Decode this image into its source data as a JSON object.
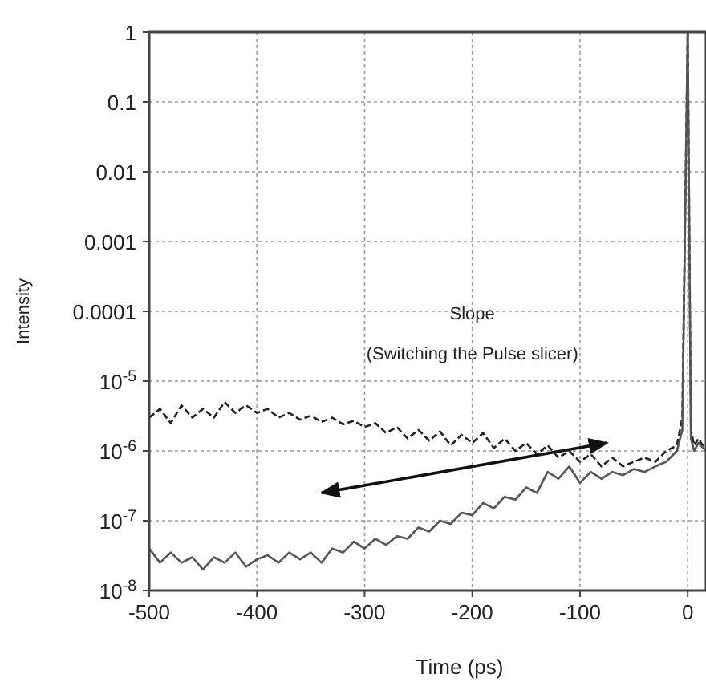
{
  "chart_data": {
    "type": "line",
    "xlabel": "Time (ps)",
    "ylabel": "Intensity",
    "log": "y",
    "grid": true,
    "marker": "none",
    "xlim": [
      -500,
      17
    ],
    "ylim": [
      1e-08,
      1
    ],
    "xticks": [
      -500,
      -400,
      -300,
      -200,
      -100,
      0
    ],
    "yticks": [
      {
        "value": 1e-08,
        "label": "10$^{-8}$"
      },
      {
        "value": 1e-07,
        "label": "10$^{-7}$"
      },
      {
        "value": 1e-06,
        "label": "10$^{-6}$"
      },
      {
        "value": 1e-05,
        "label": "10$^{-5}$"
      },
      0.0001,
      0.001,
      0.01,
      0.1,
      1
    ],
    "annotations": [
      "Slope",
      "(Switching the Pulse slicer)"
    ],
    "series": [
      {
        "color": "#222222",
        "line_style": "dashed",
        "x": [
          -500,
          -490,
          -480,
          -470,
          -460,
          -450,
          -440,
          -430,
          -420,
          -410,
          -400,
          -390,
          -380,
          -370,
          -360,
          -350,
          -340,
          -330,
          -320,
          -310,
          -300,
          -290,
          -280,
          -270,
          -260,
          -250,
          -240,
          -230,
          -220,
          -210,
          -200,
          -190,
          -180,
          -170,
          -160,
          -150,
          -140,
          -130,
          -120,
          -110,
          -100,
          -90,
          -80,
          -70,
          -60,
          -50,
          -40,
          -30,
          -20,
          -10,
          -5,
          0,
          3,
          6,
          10,
          17
        ],
        "values": [
          3e-06,
          4e-06,
          2.5e-06,
          4.5e-06,
          3e-06,
          4e-06,
          3e-06,
          5e-06,
          3.5e-06,
          4.5e-06,
          3.5e-06,
          4e-06,
          3e-06,
          3.5e-06,
          2.8e-06,
          3.2e-06,
          2.6e-06,
          3e-06,
          2.4e-06,
          2.7e-06,
          2.2e-06,
          2.5e-06,
          1.8e-06,
          2.2e-06,
          1.5e-06,
          2e-06,
          1.4e-06,
          1.9e-06,
          1.2e-06,
          1.7e-06,
          1.3e-06,
          1.8e-06,
          1.1e-06,
          1.5e-06,
          1e-06,
          1.3e-06,
          9e-07,
          1.2e-06,
          8e-07,
          1e-06,
          7e-07,
          9e-07,
          6e-07,
          8e-07,
          6e-07,
          7e-07,
          8e-07,
          7e-07,
          1e-06,
          1.2e-06,
          3e-06,
          1,
          2e-06,
          1.2e-06,
          1.5e-06,
          1e-06
        ]
      },
      {
        "color": "#555555",
        "line_style": "solid",
        "x": [
          -500,
          -490,
          -480,
          -470,
          -460,
          -450,
          -440,
          -430,
          -420,
          -410,
          -400,
          -390,
          -380,
          -370,
          -360,
          -350,
          -340,
          -330,
          -320,
          -310,
          -300,
          -290,
          -280,
          -270,
          -260,
          -250,
          -240,
          -230,
          -220,
          -210,
          -200,
          -190,
          -180,
          -170,
          -160,
          -150,
          -140,
          -130,
          -120,
          -110,
          -100,
          -90,
          -80,
          -70,
          -60,
          -50,
          -40,
          -30,
          -20,
          -10,
          -5,
          0,
          3,
          6,
          10,
          17
        ],
        "values": [
          4e-08,
          2.5e-08,
          3.5e-08,
          2.5e-08,
          3e-08,
          2e-08,
          3e-08,
          2.5e-08,
          3.5e-08,
          2.2e-08,
          2.8e-08,
          3.2e-08,
          2.5e-08,
          3.5e-08,
          2.8e-08,
          3.5e-08,
          2.5e-08,
          4e-08,
          3.5e-08,
          5e-08,
          4e-08,
          5.5e-08,
          4.5e-08,
          6e-08,
          5.5e-08,
          8e-08,
          7e-08,
          1e-07,
          9e-08,
          1.3e-07,
          1.2e-07,
          1.8e-07,
          1.5e-07,
          2.2e-07,
          2e-07,
          3e-07,
          2.5e-07,
          5e-07,
          4e-07,
          6e-07,
          3.5e-07,
          5e-07,
          4e-07,
          5e-07,
          4.5e-07,
          5.5e-07,
          5e-07,
          6e-07,
          7e-07,
          1e-06,
          2e-06,
          1,
          1.5e-06,
          1e-06,
          1.3e-06,
          1e-06
        ]
      }
    ]
  }
}
